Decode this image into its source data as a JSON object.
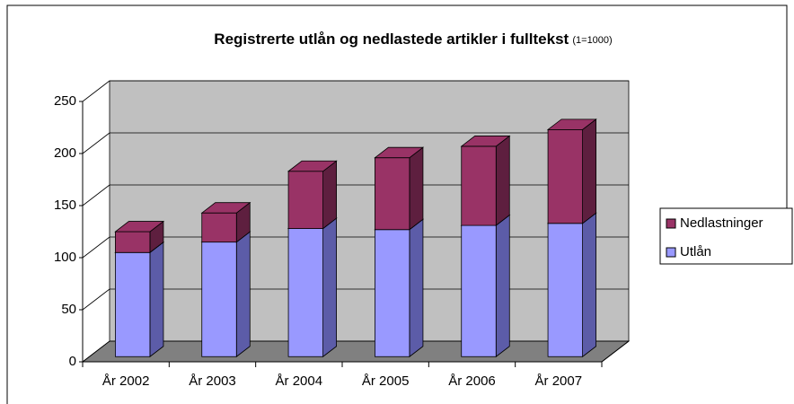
{
  "chart_data": {
    "type": "bar3d_stacked",
    "title": "Registrerte utlån og nedlastede artikler i fulltekst",
    "title_note": "(1=1000)",
    "categories": [
      "År 2002",
      "År 2003",
      "År 2004",
      "År 2005",
      "År 2006",
      "År 2007"
    ],
    "series": [
      {
        "name": "Utlån",
        "color": "#9999ff",
        "side_color": "#5c5ca8",
        "values": [
          100,
          110,
          123,
          122,
          126,
          128
        ]
      },
      {
        "name": "Nedlastninger",
        "color": "#993366",
        "side_color": "#5e1f3f",
        "values": [
          20,
          28,
          55,
          69,
          76,
          90
        ]
      }
    ],
    "ylim": [
      0,
      250
    ],
    "yticks": [
      0,
      50,
      100,
      150,
      200,
      250
    ],
    "grid": true,
    "legend": "right"
  }
}
